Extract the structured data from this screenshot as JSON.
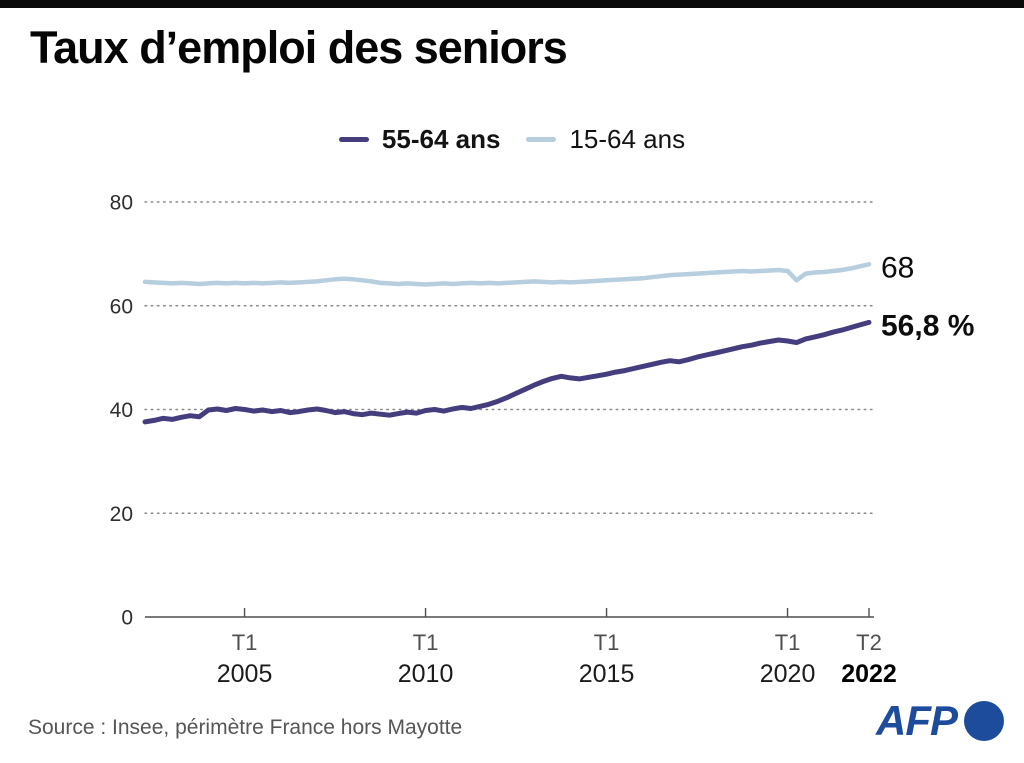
{
  "title": "Taux d’emploi des seniors",
  "legend": [
    {
      "label": "55-64 ans",
      "color": "#443d7e",
      "bold": true
    },
    {
      "label": "15-64 ans",
      "color": "#b6cede",
      "bold": false
    }
  ],
  "footer": {
    "source": "Source : Insee, périmètre France hors Mayotte",
    "afp_logo": "AFP"
  },
  "colors": {
    "series_55_64": "#443d7e",
    "series_15_64": "#b6cede",
    "afp_blue": "#1d4c9c",
    "grid": "#8a8a8a",
    "axis": "#4f4f4f",
    "top_bar": "#0a0a0a"
  },
  "chart_data": {
    "type": "line",
    "title": "Taux d'emploi des seniors",
    "xlabel": "",
    "ylabel": "",
    "ylim": [
      0,
      80
    ],
    "y_ticks": [
      0,
      20,
      40,
      60,
      80
    ],
    "grid": "horizontal dotted",
    "legend_position": "top center",
    "x_unit": "quarter",
    "x_range": "T2 2002 → T2 2022",
    "x_ticks": [
      {
        "quarter": "T1",
        "year": "2005",
        "index": 11,
        "bold": false
      },
      {
        "quarter": "T1",
        "year": "2010",
        "index": 31,
        "bold": false
      },
      {
        "quarter": "T1",
        "year": "2015",
        "index": 51,
        "bold": false
      },
      {
        "quarter": "T1",
        "year": "2020",
        "index": 71,
        "bold": false
      },
      {
        "quarter": "T2",
        "year": "2022",
        "index": 80,
        "bold": true
      }
    ],
    "series": [
      {
        "name": "15-64 ans",
        "color": "#b6cede",
        "stroke_width": 4.5,
        "end_label": "68",
        "end_label_bold": false,
        "values": [
          64.6,
          64.5,
          64.4,
          64.3,
          64.4,
          64.3,
          64.2,
          64.3,
          64.4,
          64.3,
          64.4,
          64.3,
          64.4,
          64.3,
          64.4,
          64.5,
          64.4,
          64.5,
          64.6,
          64.7,
          64.9,
          65.1,
          65.2,
          65.1,
          64.9,
          64.7,
          64.4,
          64.3,
          64.2,
          64.3,
          64.2,
          64.1,
          64.2,
          64.3,
          64.2,
          64.3,
          64.4,
          64.3,
          64.4,
          64.3,
          64.4,
          64.5,
          64.6,
          64.7,
          64.6,
          64.5,
          64.6,
          64.5,
          64.6,
          64.7,
          64.8,
          64.9,
          65.0,
          65.1,
          65.2,
          65.3,
          65.5,
          65.7,
          65.9,
          66.0,
          66.1,
          66.2,
          66.3,
          66.4,
          66.5,
          66.6,
          66.7,
          66.6,
          66.7,
          66.8,
          66.9,
          66.7,
          64.9,
          66.2,
          66.4,
          66.5,
          66.7,
          66.9,
          67.2,
          67.6,
          68.0
        ]
      },
      {
        "name": "55-64 ans",
        "color": "#443d7e",
        "stroke_width": 5,
        "end_label": "56,8 %",
        "end_label_bold": true,
        "values": [
          37.6,
          37.9,
          38.3,
          38.1,
          38.5,
          38.8,
          38.6,
          39.9,
          40.1,
          39.8,
          40.2,
          40.0,
          39.7,
          39.9,
          39.6,
          39.8,
          39.4,
          39.6,
          39.9,
          40.1,
          39.8,
          39.4,
          39.6,
          39.2,
          39.0,
          39.3,
          39.1,
          38.9,
          39.2,
          39.5,
          39.3,
          39.8,
          40.0,
          39.7,
          40.1,
          40.4,
          40.2,
          40.6,
          41.0,
          41.6,
          42.3,
          43.1,
          43.9,
          44.7,
          45.4,
          46.0,
          46.4,
          46.1,
          45.9,
          46.2,
          46.5,
          46.8,
          47.2,
          47.5,
          47.9,
          48.3,
          48.7,
          49.1,
          49.4,
          49.2,
          49.6,
          50.1,
          50.5,
          50.9,
          51.3,
          51.7,
          52.1,
          52.4,
          52.8,
          53.1,
          53.4,
          53.2,
          52.9,
          53.6,
          54.0,
          54.4,
          54.9,
          55.3,
          55.8,
          56.3,
          56.8
        ]
      }
    ]
  }
}
